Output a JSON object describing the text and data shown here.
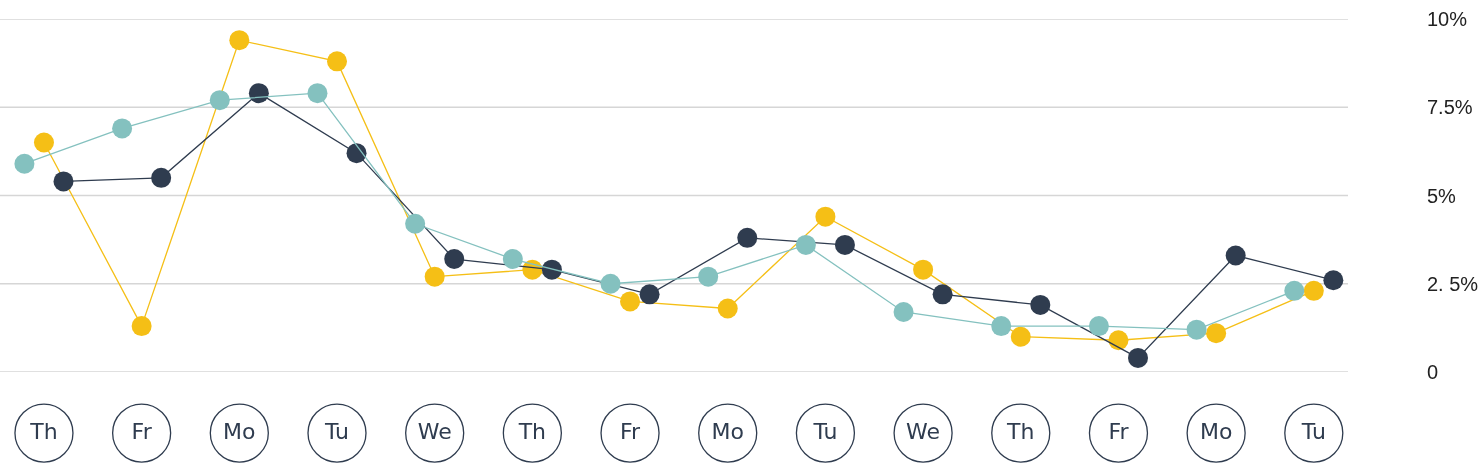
{
  "chart_data": {
    "type": "line",
    "categories": [
      "Th",
      "Fr",
      "Mo",
      "Tu",
      "We",
      "Th",
      "Fr",
      "Mo",
      "Tu",
      "We",
      "Th",
      "Fr",
      "Mo",
      "Tu"
    ],
    "series": [
      {
        "color": "#f5bf16",
        "values": [
          6.5,
          1.3,
          9.4,
          8.8,
          2.7,
          2.9,
          2.0,
          1.8,
          4.4,
          2.9,
          1.0,
          0.9,
          1.1,
          2.3
        ]
      },
      {
        "color": "#2f3c4f",
        "values": [
          5.4,
          5.5,
          7.9,
          6.2,
          3.2,
          2.9,
          2.2,
          3.8,
          3.6,
          2.2,
          1.9,
          0.4,
          3.3,
          2.6
        ]
      },
      {
        "color": "#84c1bf",
        "values": [
          5.9,
          6.9,
          7.7,
          7.9,
          4.2,
          3.2,
          2.5,
          2.7,
          3.6,
          1.7,
          1.3,
          1.3,
          1.2,
          2.3
        ]
      }
    ],
    "ylim": [
      0,
      10
    ],
    "yticks": [
      0,
      {
        "value": 2.5,
        "label": "2. 5%"
      },
      {
        "value": 5,
        "label": "5%"
      },
      {
        "value": 7.5,
        "label": "7.5%"
      },
      {
        "value": 10,
        "label": "10%"
      }
    ],
    "grid": "y",
    "marker": "circle",
    "line_style": "solid"
  }
}
